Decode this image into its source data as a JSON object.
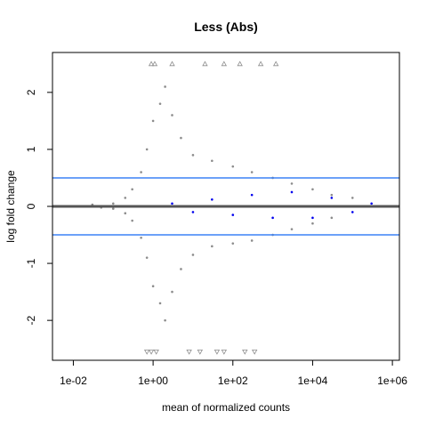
{
  "chart_data": {
    "type": "scatter",
    "title": "Less (Abs)",
    "xlabel": "mean of normalized counts",
    "ylabel": "log fold change",
    "x_scale": "log10",
    "xlim": [
      0.003,
      1500000
    ],
    "ylim": [
      -2.7,
      2.7
    ],
    "x_ticks": [
      {
        "value": 0.01,
        "label": "1e-02"
      },
      {
        "value": 1,
        "label": "1e+00"
      },
      {
        "value": 100,
        "label": "1e+02"
      },
      {
        "value": 10000,
        "label": "1e+04"
      },
      {
        "value": 1000000,
        "label": "1e+06"
      }
    ],
    "y_ticks": [
      {
        "value": -2,
        "label": "-2"
      },
      {
        "value": -1,
        "label": "-1"
      },
      {
        "value": 0,
        "label": "0"
      },
      {
        "value": 1,
        "label": "1"
      },
      {
        "value": 2,
        "label": "2"
      }
    ],
    "hlines": [
      {
        "y": 0,
        "color": "#555555"
      },
      {
        "y": 0.5,
        "color": "#3b82f6"
      },
      {
        "y": -0.5,
        "color": "#3b82f6"
      }
    ],
    "series": [
      {
        "color": "#8c8c8c",
        "points": [
          [
            0.01,
            0.0
          ],
          [
            0.03,
            0.03
          ],
          [
            0.05,
            -0.02
          ],
          [
            0.1,
            0.05
          ],
          [
            0.1,
            -0.04
          ],
          [
            0.2,
            0.15
          ],
          [
            0.2,
            -0.12
          ],
          [
            0.3,
            0.3
          ],
          [
            0.3,
            -0.25
          ],
          [
            0.5,
            0.6
          ],
          [
            0.5,
            -0.55
          ],
          [
            0.7,
            1.0
          ],
          [
            0.7,
            -0.9
          ],
          [
            1,
            1.5
          ],
          [
            1,
            -1.4
          ],
          [
            1.5,
            1.8
          ],
          [
            1.5,
            -1.7
          ],
          [
            2,
            2.1
          ],
          [
            2,
            -2.0
          ],
          [
            3,
            1.6
          ],
          [
            3,
            -1.5
          ],
          [
            5,
            1.2
          ],
          [
            5,
            -1.1
          ],
          [
            10,
            0.9
          ],
          [
            10,
            -0.85
          ],
          [
            30,
            0.8
          ],
          [
            30,
            -0.7
          ],
          [
            100,
            0.7
          ],
          [
            100,
            -0.65
          ],
          [
            300,
            0.6
          ],
          [
            300,
            -0.6
          ],
          [
            1000,
            0.5
          ],
          [
            1000,
            -0.5
          ],
          [
            3000,
            0.4
          ],
          [
            3000,
            -0.4
          ],
          [
            10000,
            0.3
          ],
          [
            10000,
            -0.3
          ],
          [
            30000,
            0.2
          ],
          [
            30000,
            -0.2
          ],
          [
            100000,
            0.15
          ]
        ]
      },
      {
        "color": "#0000ee",
        "points": [
          [
            3,
            0.05
          ],
          [
            10,
            -0.1
          ],
          [
            30,
            0.12
          ],
          [
            100,
            -0.15
          ],
          [
            300,
            0.2
          ],
          [
            1000,
            -0.2
          ],
          [
            3000,
            0.25
          ],
          [
            10000,
            -0.2
          ],
          [
            30000,
            0.15
          ],
          [
            100000,
            -0.1
          ],
          [
            300000,
            0.05
          ]
        ]
      },
      {
        "color": "#8c8c8c",
        "marker": "triangle-up",
        "points": [
          [
            0.9,
            2.5
          ],
          [
            1.1,
            2.5
          ],
          [
            3,
            2.5
          ],
          [
            20,
            2.5
          ],
          [
            60,
            2.5
          ],
          [
            150,
            2.5
          ],
          [
            500,
            2.5
          ],
          [
            1200,
            2.5
          ]
        ]
      },
      {
        "color": "#8c8c8c",
        "marker": "triangle-down",
        "points": [
          [
            0.7,
            -2.55
          ],
          [
            0.9,
            -2.55
          ],
          [
            1.2,
            -2.55
          ],
          [
            8,
            -2.55
          ],
          [
            15,
            -2.55
          ],
          [
            40,
            -2.55
          ],
          [
            60,
            -2.55
          ],
          [
            200,
            -2.55
          ],
          [
            350,
            -2.55
          ]
        ]
      }
    ]
  }
}
